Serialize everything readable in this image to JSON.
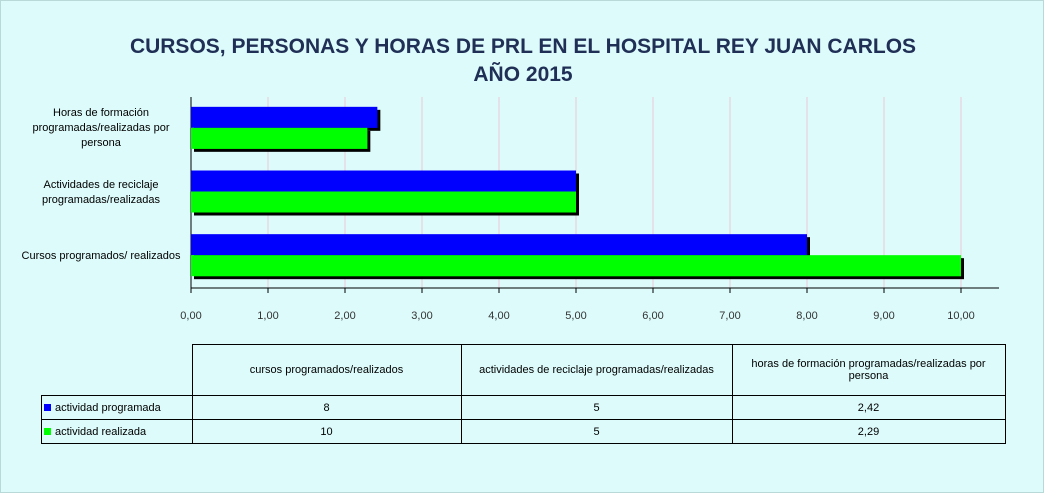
{
  "chart_data": {
    "type": "bar",
    "orientation": "horizontal",
    "title": [
      "CURSOS, PERSONAS Y HORAS DE PRL  EN EL HOSPITAL REY JUAN CARLOS",
      "AÑO  2015"
    ],
    "categories": [
      "Cursos programados/ realizados",
      "Actividades de reciclaje programadas/realizadas",
      "Horas de formación programadas/realizadas por persona"
    ],
    "series": [
      {
        "name": "actividad programada",
        "color": "#0000ff",
        "values": [
          8,
          5,
          2.42
        ],
        "value_labels": [
          "8",
          "5",
          "2,42"
        ]
      },
      {
        "name": "actividad realizada",
        "color": "#00ff00",
        "values": [
          10,
          5,
          2.29
        ],
        "value_labels": [
          "10",
          "5",
          "2,29"
        ]
      }
    ],
    "table_headers": [
      "cursos programados/realizados",
      "actividades de reciclaje programadas/realizadas",
      "horas de formación  programadas/realizadas por persona"
    ],
    "xlim": [
      0,
      10
    ],
    "xticks": [
      {
        "value": 0,
        "label": "0,00"
      },
      {
        "value": 1,
        "label": "1,00"
      },
      {
        "value": 2,
        "label": "2,00"
      },
      {
        "value": 3,
        "label": "3,00"
      },
      {
        "value": 4,
        "label": "4,00"
      },
      {
        "value": 5,
        "label": "5,00"
      },
      {
        "value": 6,
        "label": "6,00"
      },
      {
        "value": 7,
        "label": "7,00"
      },
      {
        "value": 8,
        "label": "8,00"
      },
      {
        "value": 9,
        "label": "9,00"
      },
      {
        "value": 10,
        "label": "10,00"
      }
    ],
    "grid": true
  }
}
